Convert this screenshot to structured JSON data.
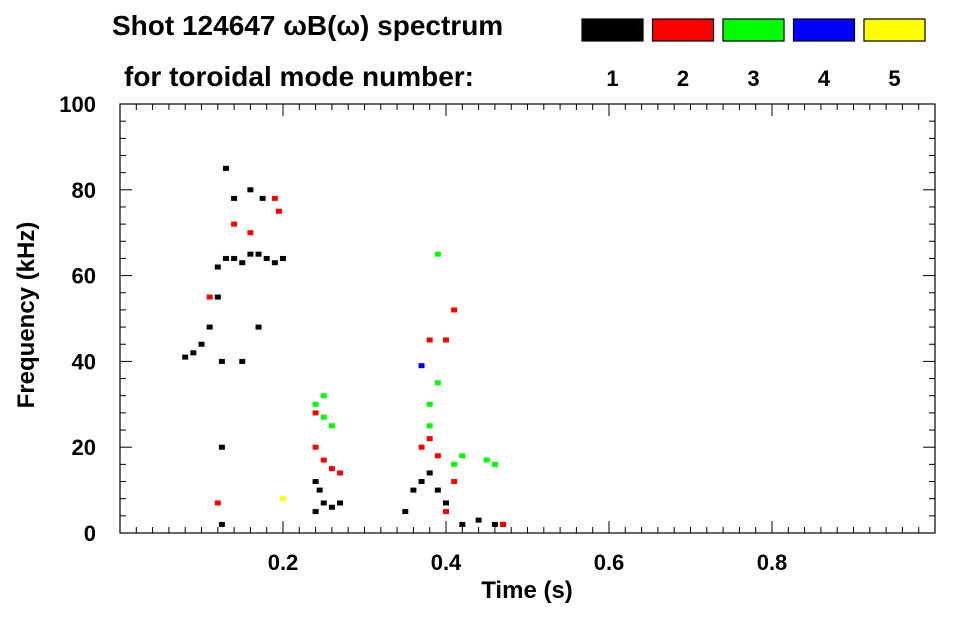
{
  "chart_data": {
    "type": "scatter",
    "title": "Shot 124647 ωB(ω) spectrum",
    "legend_title": "for toroidal mode number:",
    "xlabel": "Time (s)",
    "ylabel": "Frequency (kHz)",
    "xlim": [
      0.0,
      1.0
    ],
    "ylim": [
      0,
      100
    ],
    "x_ticks": [
      0.2,
      0.4,
      0.6,
      0.8
    ],
    "x_tick_labels": [
      "0.2",
      "0.4",
      "0.6",
      "0.8"
    ],
    "y_ticks": [
      0,
      20,
      40,
      60,
      80,
      100
    ],
    "y_tick_labels": [
      "0",
      "20",
      "40",
      "60",
      "80",
      "100"
    ],
    "x_minor_step": 0.02,
    "y_minor_step": 4,
    "grid": false,
    "legend_position": "top-right",
    "legend": [
      {
        "label": "1",
        "color": "#000000"
      },
      {
        "label": "2",
        "color": "#ff0000"
      },
      {
        "label": "3",
        "color": "#00ff00"
      },
      {
        "label": "4",
        "color": "#0000ff"
      },
      {
        "label": "5",
        "color": "#ffff00"
      }
    ],
    "series": [
      {
        "name": "1",
        "color": "#000000",
        "points": [
          [
            0.08,
            41
          ],
          [
            0.09,
            42
          ],
          [
            0.1,
            44
          ],
          [
            0.11,
            48
          ],
          [
            0.12,
            55
          ],
          [
            0.12,
            62
          ],
          [
            0.13,
            64
          ],
          [
            0.13,
            85
          ],
          [
            0.14,
            64
          ],
          [
            0.15,
            63
          ],
          [
            0.16,
            65
          ],
          [
            0.17,
            65
          ],
          [
            0.18,
            64
          ],
          [
            0.19,
            63
          ],
          [
            0.2,
            64
          ],
          [
            0.125,
            40
          ],
          [
            0.125,
            20
          ],
          [
            0.125,
            2
          ],
          [
            0.15,
            40
          ],
          [
            0.17,
            48
          ],
          [
            0.14,
            78
          ],
          [
            0.16,
            80
          ],
          [
            0.175,
            78
          ],
          [
            0.24,
            5
          ],
          [
            0.245,
            10
          ],
          [
            0.25,
            7
          ],
          [
            0.26,
            6
          ],
          [
            0.27,
            7
          ],
          [
            0.24,
            12
          ],
          [
            0.35,
            5
          ],
          [
            0.36,
            10
          ],
          [
            0.37,
            12
          ],
          [
            0.38,
            14
          ],
          [
            0.39,
            10
          ],
          [
            0.4,
            7
          ],
          [
            0.42,
            2
          ],
          [
            0.44,
            3
          ],
          [
            0.46,
            2
          ],
          [
            0.47,
            2
          ]
        ]
      },
      {
        "name": "2",
        "color": "#ff0000",
        "points": [
          [
            0.11,
            55
          ],
          [
            0.14,
            72
          ],
          [
            0.16,
            70
          ],
          [
            0.19,
            78
          ],
          [
            0.195,
            75
          ],
          [
            0.12,
            7
          ],
          [
            0.24,
            20
          ],
          [
            0.25,
            17
          ],
          [
            0.26,
            15
          ],
          [
            0.27,
            14
          ],
          [
            0.24,
            28
          ],
          [
            0.37,
            20
          ],
          [
            0.38,
            22
          ],
          [
            0.39,
            18
          ],
          [
            0.38,
            45
          ],
          [
            0.4,
            45
          ],
          [
            0.41,
            52
          ],
          [
            0.4,
            5
          ],
          [
            0.47,
            2
          ],
          [
            0.41,
            12
          ]
        ]
      },
      {
        "name": "3",
        "color": "#00ff00",
        "points": [
          [
            0.24,
            30
          ],
          [
            0.25,
            27
          ],
          [
            0.26,
            25
          ],
          [
            0.25,
            32
          ],
          [
            0.38,
            30
          ],
          [
            0.39,
            35
          ],
          [
            0.38,
            25
          ],
          [
            0.39,
            65
          ],
          [
            0.41,
            16
          ],
          [
            0.42,
            18
          ],
          [
            0.45,
            17
          ],
          [
            0.46,
            16
          ]
        ]
      },
      {
        "name": "4",
        "color": "#0000ff",
        "points": [
          [
            0.37,
            39
          ]
        ]
      },
      {
        "name": "5",
        "color": "#ffff00",
        "points": [
          [
            0.2,
            8
          ]
        ]
      }
    ]
  }
}
